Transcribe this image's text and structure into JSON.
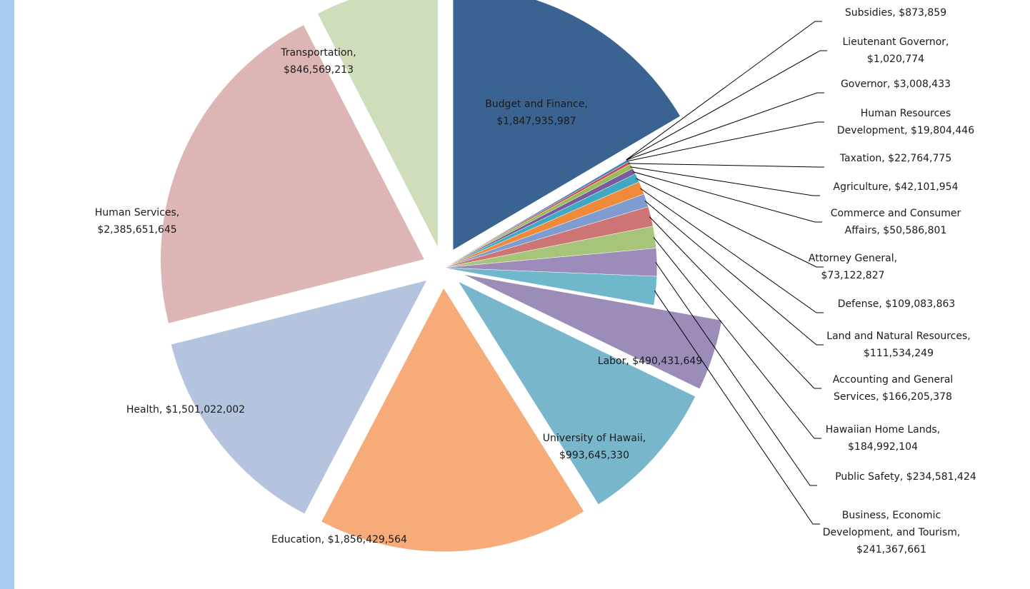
{
  "chart_data": {
    "type": "pie",
    "exploded": true,
    "slices": [
      {
        "label": "Budget and Finance",
        "value": 1847935987,
        "display": "$1,847,935,987",
        "color": "#3b6392",
        "callout": false
      },
      {
        "label": "Subsidies",
        "value": 873859,
        "display": "$873,859",
        "color": "#9c9cc4",
        "callout": true
      },
      {
        "label": "Lieutenant Governor",
        "value": 1020774,
        "display": "$1,020,774",
        "color": "#d6a05c",
        "callout": true
      },
      {
        "label": "Governor",
        "value": 3008433,
        "display": "$3,008,433",
        "color": "#7f8fb5",
        "callout": true
      },
      {
        "label": "Human Resources Development",
        "value": 19804446,
        "display": "$19,804,446",
        "color": "#4a7ebb",
        "callout": true
      },
      {
        "label": "Taxation",
        "value": 22764775,
        "display": "$22,764,775",
        "color": "#c0504d",
        "callout": true
      },
      {
        "label": "Agriculture",
        "value": 42101954,
        "display": "$42,101,954",
        "color": "#9bbb59",
        "callout": true
      },
      {
        "label": "Commerce and Consumer Affairs",
        "value": 50586801,
        "display": "$50,586,801",
        "color": "#7a5b9e",
        "callout": true
      },
      {
        "label": "Attorney General",
        "value": 73122827,
        "display": "$73,122,827",
        "color": "#3fa9c4",
        "callout": true
      },
      {
        "label": "Defense",
        "value": 109083863,
        "display": "$109,083,863",
        "color": "#ee8a39",
        "callout": true
      },
      {
        "label": "Land and Natural Resources",
        "value": 111534249,
        "display": "$111,534,249",
        "color": "#7e9ccf",
        "callout": true
      },
      {
        "label": "Accounting and General Services",
        "value": 166205378,
        "display": "$166,205,378",
        "color": "#cd7474",
        "callout": true
      },
      {
        "label": "Hawaiian Home Lands",
        "value": 184992104,
        "display": "$184,992,104",
        "color": "#a6c57a",
        "callout": true
      },
      {
        "label": "Public Safety",
        "value": 234581424,
        "display": "$234,581,424",
        "color": "#9c8bbb",
        "callout": true
      },
      {
        "label": "Business, Economic Development, and Tourism",
        "value": 241367661,
        "display": "$241,367,661",
        "color": "#6fb8cc",
        "callout": true
      },
      {
        "label": "Labor",
        "value": 490431649,
        "display": "$490,431,649",
        "color": "#9b8cb8",
        "callout": false
      },
      {
        "label": "University of Hawaii",
        "value": 993645330,
        "display": "$993,645,330",
        "color": "#78b6cc",
        "callout": false
      },
      {
        "label": "Education",
        "value": 1856429564,
        "display": "$1,856,429,564",
        "color": "#f6ab78",
        "callout": false
      },
      {
        "label": "Health",
        "value": 1501022002,
        "display": "$1,501,022,002",
        "color": "#b5c4de",
        "callout": false
      },
      {
        "label": "Human Services",
        "value": 2385651645,
        "display": "$2,385,651,645",
        "color": "#dcb5b4",
        "callout": false
      },
      {
        "label": "Transportation",
        "value": 846569213,
        "display": "$846,569,213",
        "color": "#cfddbb",
        "callout": false
      }
    ],
    "labels": [
      {
        "slice": "Budget and Finance",
        "lines": [
          "Budget and Finance,",
          "$1,847,935,987"
        ]
      },
      {
        "slice": "Transportation",
        "lines": [
          "Transportation,",
          "$846,569,213"
        ]
      },
      {
        "slice": "Human Services",
        "lines": [
          "Human Services,",
          "$2,385,651,645"
        ]
      },
      {
        "slice": "Health",
        "lines": [
          "Health,  $1,501,022,002"
        ]
      },
      {
        "slice": "Education",
        "lines": [
          "Education,  $1,856,429,564"
        ]
      },
      {
        "slice": "University of Hawaii",
        "lines": [
          "University of Hawaii,",
          "$993,645,330"
        ]
      },
      {
        "slice": "Labor",
        "lines": [
          "Labor,  $490,431,649"
        ]
      },
      {
        "slice": "Subsidies",
        "lines": [
          "Subsidies,  $873,859"
        ]
      },
      {
        "slice": "Lieutenant Governor",
        "lines": [
          "Lieutenant Governor,",
          "$1,020,774"
        ]
      },
      {
        "slice": "Governor",
        "lines": [
          "Governor,  $3,008,433"
        ]
      },
      {
        "slice": "Human Resources Development",
        "lines": [
          "Human Resources",
          "Development,  $19,804,446"
        ]
      },
      {
        "slice": "Taxation",
        "lines": [
          "Taxation,  $22,764,775"
        ]
      },
      {
        "slice": "Agriculture",
        "lines": [
          "Agriculture,  $42,101,954"
        ]
      },
      {
        "slice": "Commerce and Consumer Affairs",
        "lines": [
          "Commerce and Consumer",
          "Affairs,  $50,586,801"
        ]
      },
      {
        "slice": "Attorney General",
        "lines": [
          "Attorney General,",
          "$73,122,827"
        ]
      },
      {
        "slice": "Defense",
        "lines": [
          "Defense,  $109,083,863"
        ]
      },
      {
        "slice": "Land and Natural Resources",
        "lines": [
          "Land and Natural Resources,",
          "$111,534,249"
        ]
      },
      {
        "slice": "Accounting and General Services",
        "lines": [
          "Accounting and General",
          "Services,  $166,205,378"
        ]
      },
      {
        "slice": "Hawaiian Home Lands",
        "lines": [
          "Hawaiian Home Lands,",
          "$184,992,104"
        ]
      },
      {
        "slice": "Public Safety",
        "lines": [
          "Public Safety,  $234,581,424"
        ]
      },
      {
        "slice": "Business, Economic Development, and Tourism",
        "lines": [
          "Business, Economic",
          "Development, and Tourism,",
          "$241,367,661"
        ]
      }
    ]
  }
}
